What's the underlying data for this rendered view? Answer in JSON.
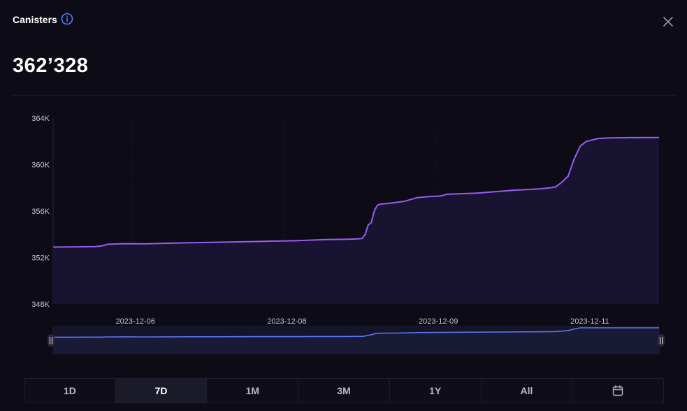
{
  "header": {
    "title": "Canisters",
    "info_icon": "info-circle-icon",
    "close_icon": "close-icon",
    "value": "362’328"
  },
  "colors": {
    "background": "#0c0b16",
    "line": "#9b5cf0",
    "area_fill": "#171330",
    "navigator_line": "#5a76f0",
    "grid": "#1f1d2c",
    "accent_info": "#5b7cf2"
  },
  "chart_data": {
    "type": "area",
    "title": "",
    "xlabel": "",
    "ylabel": "",
    "ylim": [
      348000,
      364000
    ],
    "yticks": [
      364000,
      360000,
      356000,
      352000,
      348000
    ],
    "ytick_labels": [
      "364K",
      "360K",
      "356K",
      "352K",
      "348K"
    ],
    "xtick_labels": [
      "2023-12-06",
      "2023-12-08",
      "2023-12-09",
      "2023-12-11"
    ],
    "xtick_positions": [
      0.13,
      0.38,
      0.63,
      0.88
    ],
    "grid": "vertical dotted",
    "series": [
      {
        "x": [
          0,
          0.03,
          0.07,
          0.08,
          0.09,
          0.12,
          0.15,
          0.2,
          0.22,
          0.25,
          0.3,
          0.35,
          0.4,
          0.45,
          0.48,
          0.5,
          0.51,
          0.515,
          0.52,
          0.525,
          0.53,
          0.535,
          0.54,
          0.55,
          0.56,
          0.58,
          0.6,
          0.62,
          0.64,
          0.65,
          0.7,
          0.75,
          0.76,
          0.8,
          0.81,
          0.82,
          0.83,
          0.84,
          0.85,
          0.86,
          0.87,
          0.88,
          0.9,
          0.92,
          0.95,
          1.0
        ],
        "values": [
          352900,
          352920,
          352950,
          353000,
          353150,
          353200,
          353180,
          353250,
          353270,
          353300,
          353350,
          353400,
          353450,
          353550,
          353570,
          353600,
          353640,
          354000,
          354800,
          355000,
          356000,
          356500,
          356600,
          356650,
          356700,
          356850,
          357150,
          357250,
          357300,
          357450,
          357550,
          357750,
          357800,
          357900,
          357950,
          358000,
          358100,
          358500,
          359000,
          360500,
          361600,
          362000,
          362250,
          362300,
          362320,
          362328
        ]
      }
    ],
    "navigator": {
      "handles": [
        "left-handle-icon",
        "right-handle-icon"
      ]
    }
  },
  "ranges": {
    "active": "7D",
    "items": [
      "1D",
      "7D",
      "1M",
      "3M",
      "1Y",
      "All"
    ],
    "calendar_icon": "calendar-icon"
  }
}
